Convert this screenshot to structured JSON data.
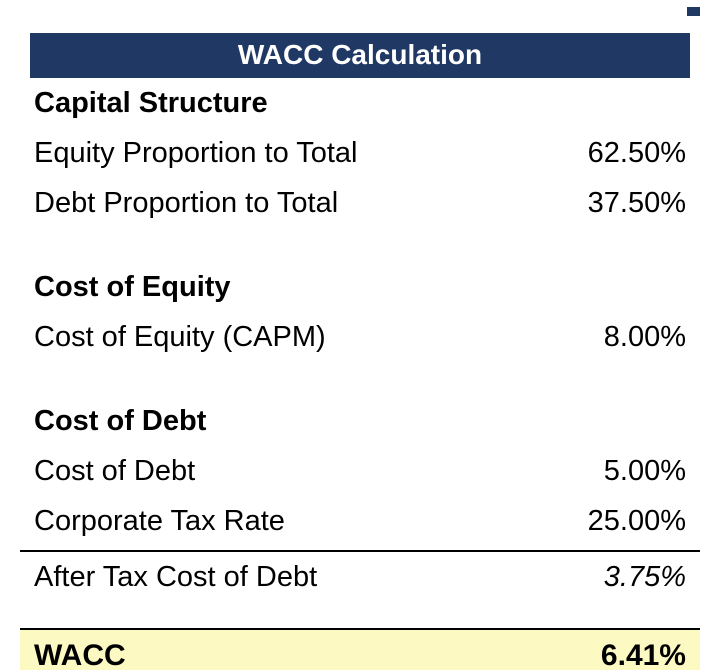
{
  "header": {
    "title": "WACC Calculation"
  },
  "sections": [
    {
      "heading": "Capital Structure",
      "rows": [
        {
          "label": "Equity Proportion to Total",
          "value": "62.50%"
        },
        {
          "label": "Debt Proportion to Total",
          "value": "37.50%"
        }
      ]
    },
    {
      "heading": "Cost of Equity",
      "rows": [
        {
          "label": "Cost of Equity (CAPM)",
          "value": "8.00%"
        }
      ]
    },
    {
      "heading": "Cost of Debt",
      "rows": [
        {
          "label": "Cost of Debt",
          "value": "5.00%"
        },
        {
          "label": "Corporate Tax Rate",
          "value": "25.00%"
        }
      ],
      "subtotal": {
        "label": "After Tax Cost of Debt",
        "value": "3.75%"
      }
    }
  ],
  "result": {
    "label": "WACC",
    "value": "6.41%"
  },
  "colors": {
    "header_bg": "#1f3864",
    "header_text": "#ffffff",
    "result_bg": "#fdf9c3",
    "border": "#000000",
    "body_text": "#000000"
  }
}
